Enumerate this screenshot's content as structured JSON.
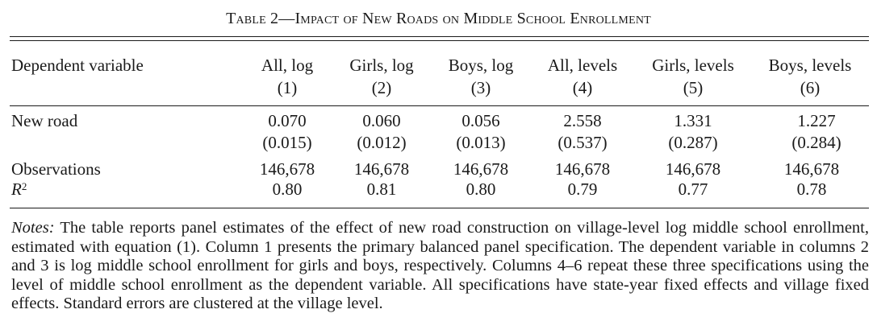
{
  "table": {
    "title": "Table 2—Impact of New Roads on Middle School Enrollment",
    "header_label": "Dependent variable",
    "columns": [
      {
        "name": "All, log",
        "num": "(1)"
      },
      {
        "name": "Girls, log",
        "num": "(2)"
      },
      {
        "name": "Boys, log",
        "num": "(3)"
      },
      {
        "name": "All, levels",
        "num": "(4)"
      },
      {
        "name": "Girls, levels",
        "num": "(5)"
      },
      {
        "name": "Boys, levels",
        "num": "(6)"
      }
    ],
    "rows": {
      "new_road": {
        "label": "New road",
        "estimates": [
          "0.070",
          "0.060",
          "0.056",
          "2.558",
          "1.331",
          "1.227"
        ],
        "std_errors": [
          "(0.015)",
          "(0.012)",
          "(0.013)",
          "(0.537)",
          "(0.287)",
          "(0.284)"
        ]
      },
      "observations": {
        "label": "Observations",
        "values": [
          "146,678",
          "146,678",
          "146,678",
          "146,678",
          "146,678",
          "146,678"
        ]
      },
      "r2": {
        "label_base": "R",
        "label_sup": "2",
        "values": [
          "0.80",
          "0.81",
          "0.80",
          "0.79",
          "0.77",
          "0.78"
        ]
      }
    }
  },
  "notes": {
    "lead": "Notes:",
    "text": " The table reports panel estimates of the effect of new road construction on village-level log middle school enrollment, estimated with equation (1). Column 1 presents the primary balanced panel specification. The dependent variable in columns 2 and 3 is log middle school enrollment for girls and boys, respectively. Columns 4–6 repeat these three specifications using the level of middle school enrollment as the dependent variable. All specifications have state-year fixed effects and village fixed effects. Standard errors are clustered at the village level."
  }
}
